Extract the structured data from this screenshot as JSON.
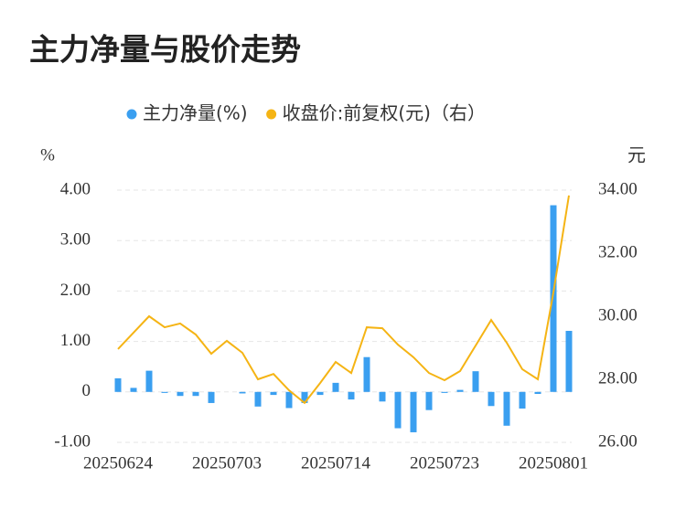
{
  "chart_data": {
    "type": "bar-line",
    "title": "主力净量与股价走势",
    "y_label": "%",
    "y2_label": "元",
    "categories": [
      "20250624",
      null,
      null,
      null,
      null,
      null,
      null,
      "20250703",
      null,
      null,
      null,
      null,
      null,
      null,
      "20250714",
      null,
      null,
      null,
      null,
      null,
      null,
      "20250723",
      null,
      null,
      null,
      null,
      null,
      null,
      "20250801",
      null
    ],
    "series": [
      {
        "name": "主力净量(%)",
        "type": "bar",
        "color": "#3a9ff0",
        "axis": "y",
        "values": [
          0.27,
          0.08,
          0.42,
          -0.02,
          -0.08,
          -0.08,
          -0.22,
          0,
          -0.03,
          -0.29,
          -0.06,
          -0.32,
          -0.22,
          -0.06,
          0.18,
          -0.15,
          0.69,
          -0.19,
          -0.72,
          -0.8,
          -0.36,
          -0.02,
          0.04,
          0.41,
          -0.28,
          -0.67,
          -0.33,
          -0.04,
          3.7,
          1.21
        ]
      },
      {
        "name": "收盘价:前复权(元)（右）",
        "type": "line",
        "color": "#f5b414",
        "axis": "y2",
        "values": [
          28.96,
          29.48,
          30.0,
          29.65,
          29.77,
          29.42,
          28.81,
          29.22,
          28.84,
          28.0,
          28.17,
          27.65,
          27.25,
          27.88,
          28.55,
          28.2,
          29.65,
          29.62,
          29.1,
          28.7,
          28.2,
          27.97,
          28.26,
          29.07,
          29.88,
          29.16,
          28.32,
          28.0,
          30.75,
          33.83
        ]
      }
    ],
    "ylim": [
      -1,
      4
    ],
    "yticks": [
      {
        "value": -1,
        "label": "-1.00"
      },
      0,
      {
        "value": 1,
        "label": "1.00"
      },
      {
        "value": 2,
        "label": "2.00"
      },
      {
        "value": 3,
        "label": "3.00"
      },
      {
        "value": 4,
        "label": "4.00"
      }
    ],
    "y2lim": [
      26,
      34
    ],
    "y2ticks": [
      {
        "value": 26,
        "label": "26.00"
      },
      {
        "value": 28,
        "label": "28.00"
      },
      {
        "value": 30,
        "label": "30.00"
      },
      {
        "value": 32,
        "label": "32.00"
      },
      {
        "value": 34,
        "label": "34.00"
      }
    ],
    "grid": true
  }
}
